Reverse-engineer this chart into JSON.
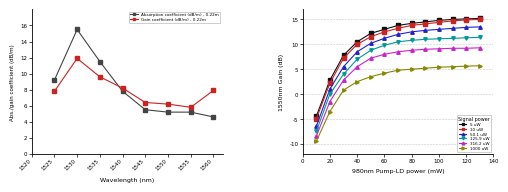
{
  "left": {
    "absorption": {
      "x": [
        1525,
        1530,
        1535,
        1540,
        1545,
        1550,
        1555,
        1560
      ],
      "y": [
        9.2,
        15.5,
        11.5,
        7.8,
        5.5,
        5.2,
        5.2,
        4.6
      ]
    },
    "gain": {
      "x": [
        1525,
        1530,
        1535,
        1540,
        1545,
        1550,
        1555,
        1560
      ],
      "y": [
        7.8,
        11.9,
        9.6,
        8.2,
        6.4,
        6.2,
        5.8,
        7.9
      ]
    },
    "absorption_label": "Absorption coefficient (dB/m) - 0.22m",
    "gain_label": "Gain coefficient (dB/m) - 0.22m",
    "xlabel": "Wavelength (nm)",
    "ylabel": "Abs./gain coefficient (dB/m)",
    "xlim": [
      1520,
      1562
    ],
    "ylim": [
      0,
      18
    ],
    "yticks": [
      0,
      2,
      4,
      6,
      8,
      10,
      12,
      14,
      16
    ],
    "xticks": [
      1520,
      1525,
      1530,
      1535,
      1540,
      1545,
      1550,
      1555,
      1560
    ],
    "absorption_color": "#444444",
    "gain_color": "#cc2222"
  },
  "right": {
    "pump_x": [
      10,
      20,
      30,
      40,
      50,
      60,
      70,
      80,
      90,
      100,
      110,
      120,
      130
    ],
    "series": [
      {
        "label": "5 uW",
        "color": "#111111",
        "marker": "s",
        "y": [
          -4.5,
          2.8,
          7.8,
          10.5,
          12.2,
          13.0,
          13.8,
          14.2,
          14.5,
          14.8,
          15.0,
          15.1,
          15.2
        ]
      },
      {
        "label": "10 uW",
        "color": "#cc2222",
        "marker": "s",
        "y": [
          -5.0,
          2.2,
          7.2,
          10.0,
          11.5,
          12.5,
          13.2,
          13.8,
          14.1,
          14.4,
          14.7,
          14.9,
          15.0
        ]
      },
      {
        "label": "50.1 uW",
        "color": "#2222cc",
        "marker": "^",
        "y": [
          -6.5,
          1.0,
          5.5,
          8.5,
          10.2,
          11.2,
          12.0,
          12.5,
          12.8,
          13.0,
          13.2,
          13.4,
          13.5
        ]
      },
      {
        "label": "125.9 uW",
        "color": "#009999",
        "marker": "v",
        "y": [
          -7.5,
          0.0,
          4.0,
          7.0,
          8.8,
          9.8,
          10.5,
          10.8,
          11.0,
          11.1,
          11.2,
          11.3,
          11.4
        ]
      },
      {
        "label": "316.2 uW",
        "color": "#cc22cc",
        "marker": "^",
        "y": [
          -8.5,
          -1.5,
          2.8,
          5.5,
          7.2,
          8.0,
          8.5,
          8.8,
          9.0,
          9.1,
          9.2,
          9.2,
          9.3
        ]
      },
      {
        "label": "1000 uW",
        "color": "#888800",
        "marker": ">",
        "y": [
          -9.5,
          -3.5,
          0.8,
          2.5,
          3.5,
          4.2,
          4.8,
          5.0,
          5.2,
          5.4,
          5.5,
          5.6,
          5.7
        ]
      }
    ],
    "xlabel": "980nm Pump-LD power (mW)",
    "ylabel": "1550nm Gain (dB)",
    "xlim": [
      0,
      140
    ],
    "ylim": [
      -12,
      17
    ],
    "xticks": [
      0,
      20,
      40,
      60,
      80,
      100,
      120,
      140
    ],
    "yticks": [
      -10,
      -5,
      0,
      5,
      10,
      15
    ],
    "legend_title": "Signal power"
  },
  "bg_color": "#ffffff"
}
